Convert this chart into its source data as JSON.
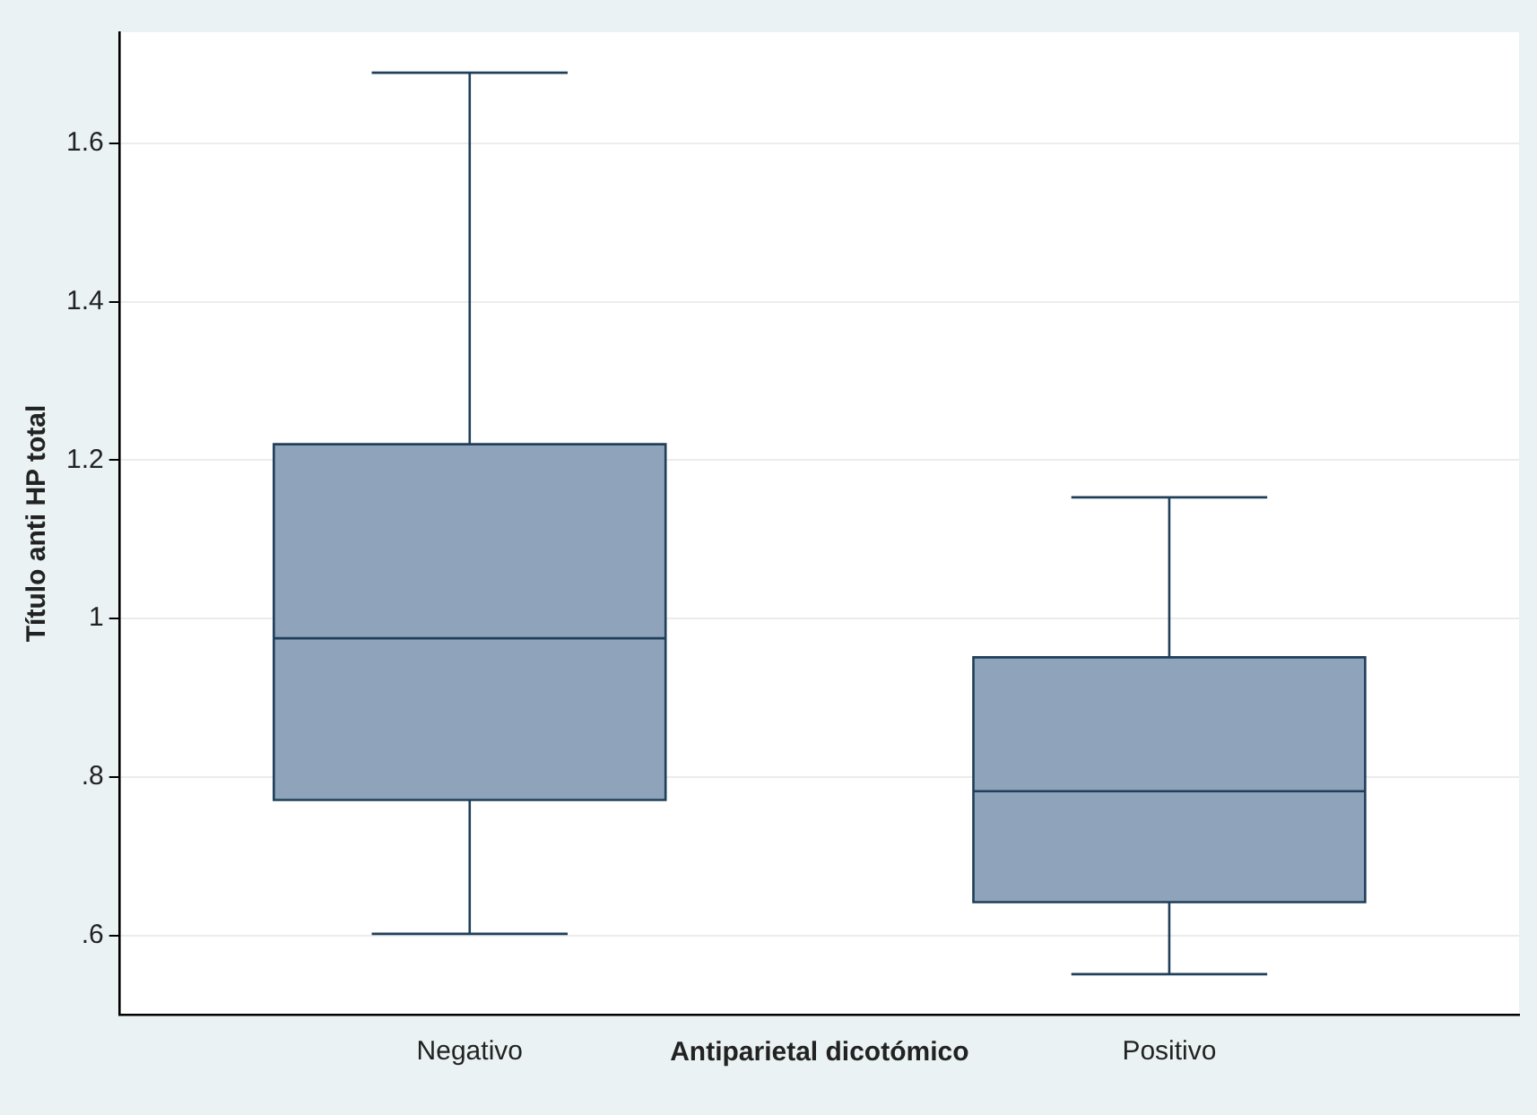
{
  "chart_data": {
    "type": "box",
    "xlabel": "Antiparietal dicotómico",
    "ylabel": "Título anti HP total",
    "categories": [
      "Negativo",
      "Positivo"
    ],
    "series": [
      {
        "color": "#8fa4bb",
        "boxes": [
          {
            "low": 0.602,
            "q1": 0.771,
            "median": 0.975,
            "q3": 1.22,
            "high": 1.689
          },
          {
            "low": 0.551,
            "q1": 0.642,
            "median": 0.782,
            "q3": 0.951,
            "high": 1.153
          }
        ]
      }
    ],
    "ylim": [
      0.5,
      1.74
    ],
    "yticks": [
      {
        "value": 0.6,
        "label": ".6"
      },
      {
        "value": 0.8,
        "label": ".8"
      },
      1,
      1.2,
      1.4,
      1.6
    ],
    "grid": "y",
    "legend": false
  }
}
